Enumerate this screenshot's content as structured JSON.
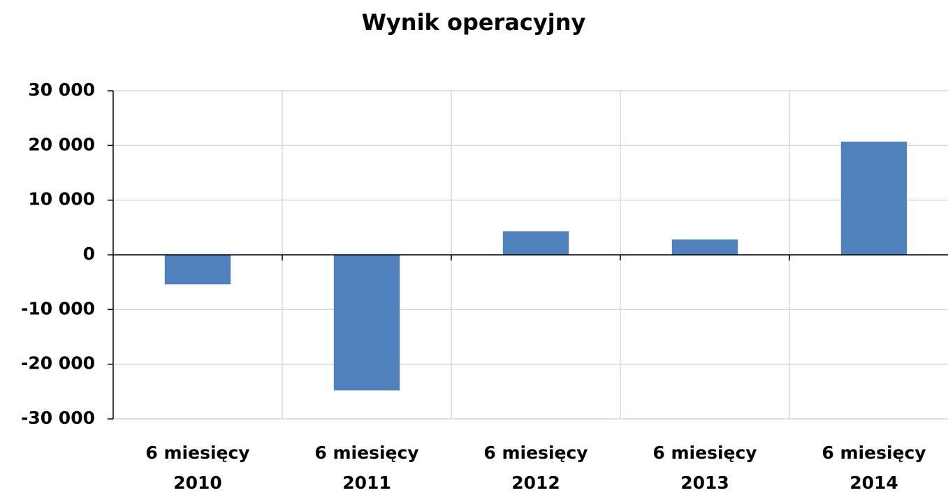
{
  "chart_data": {
    "type": "bar",
    "title": "Wynik operacyjny",
    "categories": [
      "6 miesięcy 2010",
      "6 miesięcy 2011",
      "6 miesięcy 2012",
      "6 miesięcy 2013",
      "6 miesięcy 2014"
    ],
    "values": [
      -5400,
      -24800,
      4300,
      2800,
      20700
    ],
    "color": "#4f81bd",
    "ylim": [
      -30000,
      30000
    ],
    "yticks": [
      {
        "value": -30000,
        "label": "-30 000"
      },
      {
        "value": -20000,
        "label": "-20 000"
      },
      {
        "value": -10000,
        "label": "-10 000"
      },
      0,
      {
        "value": 10000,
        "label": "10 000"
      },
      {
        "value": 20000,
        "label": "20 000"
      },
      {
        "value": 30000,
        "label": "30 000"
      }
    ],
    "grid": true
  }
}
